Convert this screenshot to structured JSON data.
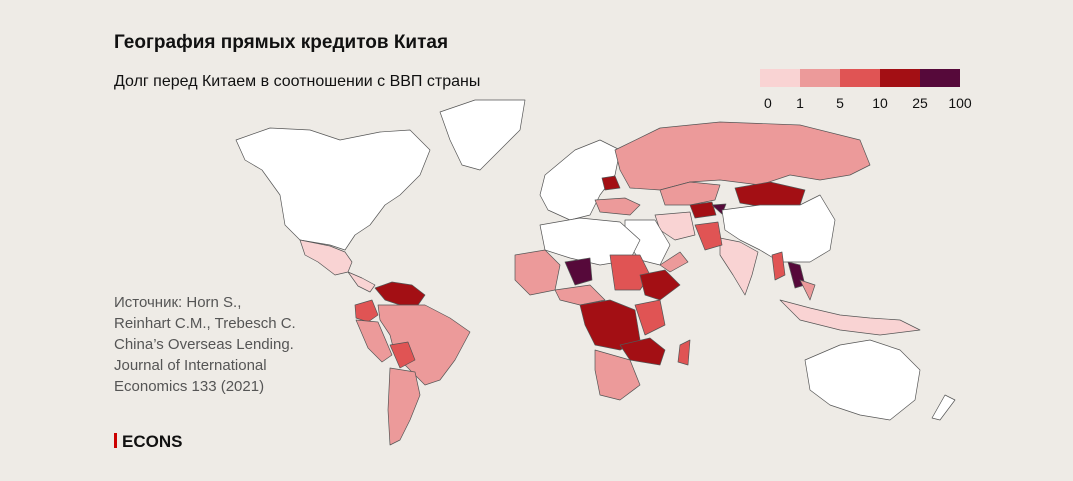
{
  "header": {
    "title": "География прямых кредитов Китая",
    "subtitle": "Долг перед Китаем в соотношении с ВВП страны"
  },
  "legend": {
    "ticks": [
      0,
      1,
      5,
      10,
      25,
      100
    ],
    "colors": [
      "#f9d3d3",
      "#ec9a9a",
      "#e05454",
      "#a30f14",
      "#56093a"
    ]
  },
  "source": {
    "lines": [
      "Источник: Horn S.,",
      "Reinhart C.M., Trebesch C.",
      "China’s Overseas Lending.",
      "Journal of International",
      "Economics 133 (2021)"
    ]
  },
  "logo": {
    "text": "ECONS"
  }
}
